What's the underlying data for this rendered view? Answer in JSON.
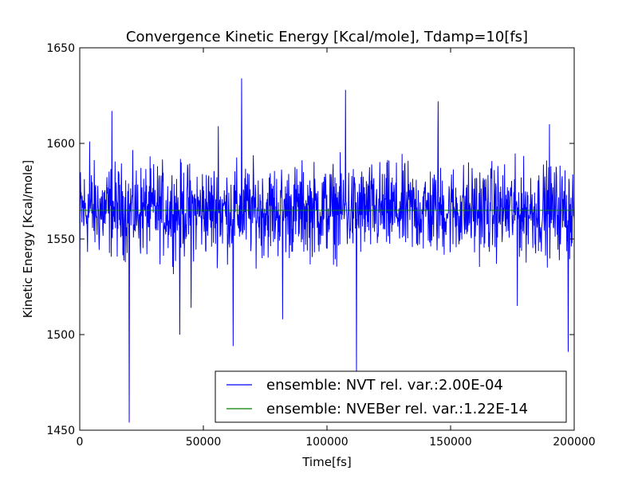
{
  "chart_data": {
    "type": "line",
    "title": "Convergence Kinetic Energy [Kcal/mole], Tdamp=10[fs]",
    "xlabel": "Time[fs]",
    "ylabel": "Kinetic Energy [Kcal/mole]",
    "xlim": [
      0,
      200000
    ],
    "ylim": [
      1450,
      1650
    ],
    "xticks": [
      0,
      50000,
      100000,
      150000,
      200000
    ],
    "xtick_labels": [
      "0",
      "50000",
      "100000",
      "150000",
      "200000"
    ],
    "yticks": [
      1450,
      1500,
      1550,
      1600,
      1650
    ],
    "ytick_labels": [
      "1450",
      "1500",
      "1550",
      "1600",
      "1650"
    ],
    "grid": false,
    "legend_position": "lower-right",
    "series": [
      {
        "name": "ensemble: NVT rel. var.:2.00E-04",
        "color": "#0000ff",
        "baseline": 1565,
        "amplitude_typical": 22,
        "notable_points": [
          {
            "x": 0,
            "y": 1520
          },
          {
            "x": 4000,
            "y": 1601
          },
          {
            "x": 13000,
            "y": 1617
          },
          {
            "x": 20000,
            "y": 1454
          },
          {
            "x": 40500,
            "y": 1500
          },
          {
            "x": 45000,
            "y": 1514
          },
          {
            "x": 56000,
            "y": 1609
          },
          {
            "x": 62000,
            "y": 1494
          },
          {
            "x": 65500,
            "y": 1634
          },
          {
            "x": 82000,
            "y": 1508
          },
          {
            "x": 107500,
            "y": 1628
          },
          {
            "x": 112000,
            "y": 1480
          },
          {
            "x": 145000,
            "y": 1622
          },
          {
            "x": 177000,
            "y": 1515
          },
          {
            "x": 190000,
            "y": 1610
          },
          {
            "x": 197500,
            "y": 1491
          },
          {
            "x": 200000,
            "y": 1560
          }
        ]
      },
      {
        "name": "ensemble: NVEBer rel. var.:1.22E-14",
        "color": "#008000",
        "x": [
          0,
          200000
        ],
        "y": [
          1565,
          1565
        ]
      }
    ]
  }
}
